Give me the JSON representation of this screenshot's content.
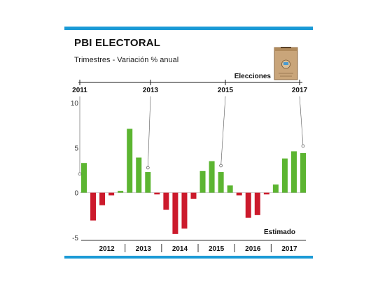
{
  "chart_data": {
    "type": "bar",
    "title": "PBI ELECTORAL",
    "subtitle": "Trimestres - Variación % anual",
    "ylim": [
      -5,
      10
    ],
    "yticks": [
      10,
      5,
      0,
      -5
    ],
    "positive_color": "#5cb531",
    "negative_color": "#cc1a2c",
    "values": [
      3.3,
      -3.1,
      -1.4,
      -0.3,
      0.2,
      7.1,
      3.9,
      2.3,
      -0.2,
      -1.9,
      -4.6,
      -4.0,
      -0.7,
      2.4,
      3.5,
      2.3,
      0.8,
      -0.3,
      -2.8,
      -2.5,
      -0.2,
      0.9,
      3.8,
      4.6,
      4.4
    ],
    "year_labels": [
      "2012",
      "2013",
      "2014",
      "2015",
      "2016",
      "2017"
    ],
    "elections_label": "Elecciones",
    "election_years": [
      "2011",
      "2013",
      "2015",
      "2017"
    ],
    "estimate_label": "Estimado"
  },
  "colors": {
    "accent": "#1b9ad6"
  },
  "ballot_icon": "ballot-box-icon"
}
